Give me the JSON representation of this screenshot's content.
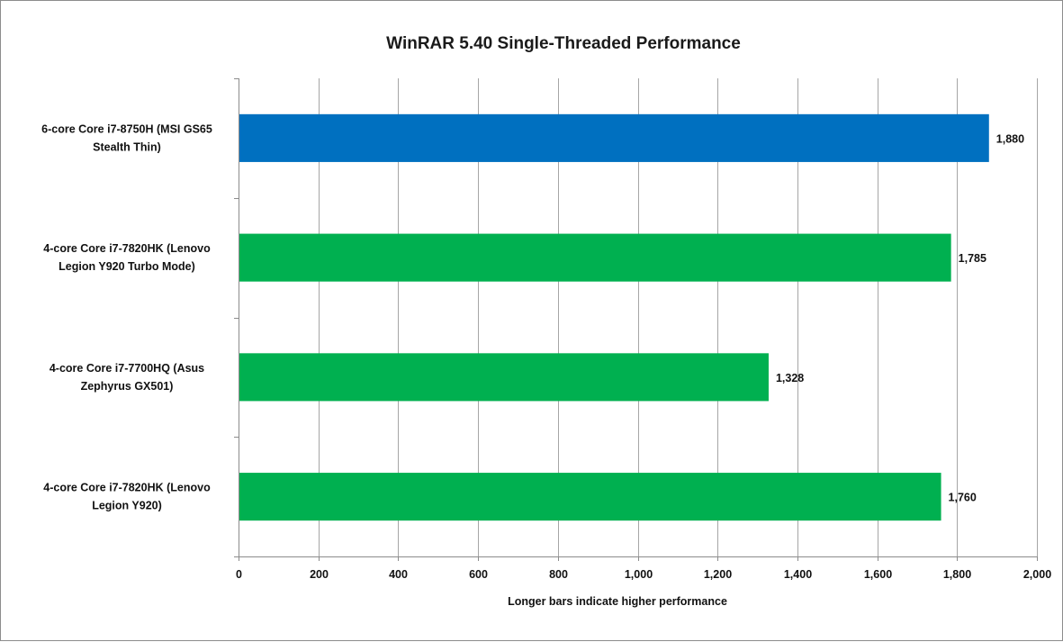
{
  "chart_data": {
    "type": "bar",
    "orientation": "horizontal",
    "title": "WinRAR 5.40 Single-Threaded Performance",
    "xlabel": "Longer  bars indicate higher performance",
    "ylabel": "",
    "xlim": [
      0,
      2000
    ],
    "xticks": [
      0,
      200,
      400,
      600,
      800,
      1000,
      1200,
      1400,
      1600,
      1800,
      2000
    ],
    "xtick_labels": [
      "0",
      "200",
      "400",
      "600",
      "800",
      "1,000",
      "1,200",
      "1,400",
      "1,600",
      "1,800",
      "2,000"
    ],
    "grid": true,
    "legend": "none",
    "categories": [
      [
        "6-core Core i7-8750H (MSI GS65",
        "Stealth Thin)"
      ],
      [
        "4-core Core i7-7820HK (Lenovo",
        "Legion Y920 Turbo Mode)"
      ],
      [
        "4-core Core i7-7700HQ (Asus",
        "Zephyrus GX501)"
      ],
      [
        "4-core Core i7-7820HK (Lenovo",
        "Legion Y920)"
      ]
    ],
    "values": [
      1880,
      1785,
      1328,
      1760
    ],
    "value_labels": [
      "1,880",
      "1,785",
      "1,328",
      "1,760"
    ],
    "bar_colors": [
      "#0070c0",
      "#00b050",
      "#00b050",
      "#00b050"
    ]
  }
}
